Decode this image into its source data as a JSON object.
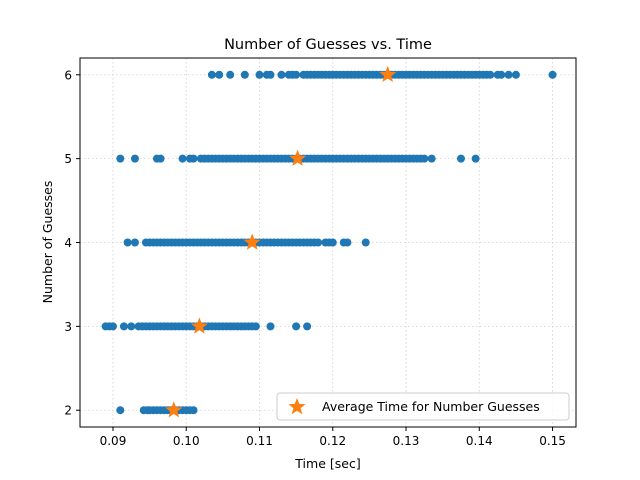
{
  "chart_data": {
    "type": "scatter",
    "title": "Number of Guesses vs. Time",
    "xlabel": "Time [sec]",
    "ylabel": "Number of Guesses",
    "xlim": [
      0.0855,
      0.1532
    ],
    "ylim": [
      1.8,
      6.2
    ],
    "xticks": [
      0.09,
      0.1,
      0.11,
      0.12,
      0.13,
      0.14,
      0.15
    ],
    "xtick_labels": [
      "0.09",
      "0.10",
      "0.11",
      "0.12",
      "0.13",
      "0.14",
      "0.15"
    ],
    "yticks": [
      2,
      3,
      4,
      5,
      6
    ],
    "ytick_labels": [
      "2",
      "3",
      "4",
      "5",
      "6"
    ],
    "grid": true,
    "legend_position": "lower-right",
    "colors": {
      "points": "#1f77b4",
      "average": "#ff7f0e",
      "grid": "#d0d0d0"
    },
    "series": [
      {
        "role": "points",
        "x": [
          0.091,
          0.0942,
          0.0947,
          0.095,
          0.0955,
          0.096,
          0.0965,
          0.097,
          0.0975,
          0.098,
          0.0985,
          0.099,
          0.0995,
          0.1,
          0.1005,
          0.101,
          0.089,
          0.0895,
          0.09,
          0.0915,
          0.0925,
          0.0935,
          0.094,
          0.0945,
          0.095,
          0.0955,
          0.096,
          0.0965,
          0.097,
          0.0975,
          0.098,
          0.0985,
          0.099,
          0.0995,
          0.1,
          0.1005,
          0.101,
          0.1015,
          0.102,
          0.1025,
          0.103,
          0.1035,
          0.104,
          0.1045,
          0.105,
          0.1055,
          0.106,
          0.1065,
          0.107,
          0.1075,
          0.108,
          0.1085,
          0.109,
          0.1095,
          0.1115,
          0.115,
          0.1165,
          0.092,
          0.093,
          0.0945,
          0.095,
          0.0955,
          0.096,
          0.0965,
          0.097,
          0.0975,
          0.098,
          0.0985,
          0.099,
          0.0995,
          0.1,
          0.1005,
          0.101,
          0.1015,
          0.102,
          0.1025,
          0.103,
          0.1035,
          0.104,
          0.1045,
          0.105,
          0.1055,
          0.106,
          0.1065,
          0.107,
          0.1075,
          0.108,
          0.1085,
          0.109,
          0.1095,
          0.11,
          0.1105,
          0.111,
          0.1115,
          0.112,
          0.1125,
          0.113,
          0.1135,
          0.114,
          0.1145,
          0.115,
          0.1155,
          0.116,
          0.1165,
          0.117,
          0.1175,
          0.118,
          0.119,
          0.1195,
          0.12,
          0.1215,
          0.122,
          0.1245,
          0.091,
          0.093,
          0.096,
          0.0965,
          0.0995,
          0.1005,
          0.101,
          0.102,
          0.1025,
          0.103,
          0.1035,
          0.104,
          0.1045,
          0.105,
          0.1055,
          0.106,
          0.1065,
          0.107,
          0.1075,
          0.108,
          0.1085,
          0.109,
          0.1095,
          0.11,
          0.1105,
          0.111,
          0.1115,
          0.112,
          0.1125,
          0.113,
          0.1135,
          0.114,
          0.1145,
          0.115,
          0.1155,
          0.116,
          0.1165,
          0.117,
          0.1175,
          0.118,
          0.1185,
          0.119,
          0.1195,
          0.12,
          0.1205,
          0.121,
          0.1215,
          0.122,
          0.1225,
          0.123,
          0.1235,
          0.124,
          0.1245,
          0.125,
          0.1255,
          0.126,
          0.1265,
          0.127,
          0.1275,
          0.128,
          0.1285,
          0.129,
          0.1295,
          0.13,
          0.1305,
          0.131,
          0.1315,
          0.132,
          0.1325,
          0.1335,
          0.1375,
          0.1395,
          0.1035,
          0.1045,
          0.106,
          0.108,
          0.11,
          0.111,
          0.1115,
          0.113,
          0.114,
          0.1145,
          0.115,
          0.116,
          0.1165,
          0.117,
          0.1175,
          0.118,
          0.1185,
          0.119,
          0.1195,
          0.12,
          0.1205,
          0.121,
          0.1215,
          0.122,
          0.1225,
          0.123,
          0.1235,
          0.124,
          0.1245,
          0.125,
          0.1255,
          0.126,
          0.1265,
          0.127,
          0.1275,
          0.128,
          0.1285,
          0.129,
          0.1295,
          0.13,
          0.1305,
          0.131,
          0.1315,
          0.132,
          0.1325,
          0.133,
          0.1335,
          0.134,
          0.1345,
          0.135,
          0.1355,
          0.136,
          0.1365,
          0.137,
          0.1375,
          0.138,
          0.1385,
          0.139,
          0.1395,
          0.14,
          0.1405,
          0.141,
          0.1415,
          0.1425,
          0.143,
          0.144,
          0.145,
          0.15
        ],
        "y": [
          2,
          2,
          2,
          2,
          2,
          2,
          2,
          2,
          2,
          2,
          2,
          2,
          2,
          2,
          2,
          2,
          3,
          3,
          3,
          3,
          3,
          3,
          3,
          3,
          3,
          3,
          3,
          3,
          3,
          3,
          3,
          3,
          3,
          3,
          3,
          3,
          3,
          3,
          3,
          3,
          3,
          3,
          3,
          3,
          3,
          3,
          3,
          3,
          3,
          3,
          3,
          3,
          3,
          3,
          3,
          3,
          3,
          4,
          4,
          4,
          4,
          4,
          4,
          4,
          4,
          4,
          4,
          4,
          4,
          4,
          4,
          4,
          4,
          4,
          4,
          4,
          4,
          4,
          4,
          4,
          4,
          4,
          4,
          4,
          4,
          4,
          4,
          4,
          4,
          4,
          4,
          4,
          4,
          4,
          4,
          4,
          4,
          4,
          4,
          4,
          4,
          4,
          4,
          4,
          4,
          4,
          4,
          4,
          4,
          4,
          4,
          4,
          4,
          5,
          5,
          5,
          5,
          5,
          5,
          5,
          5,
          5,
          5,
          5,
          5,
          5,
          5,
          5,
          5,
          5,
          5,
          5,
          5,
          5,
          5,
          5,
          5,
          5,
          5,
          5,
          5,
          5,
          5,
          5,
          5,
          5,
          5,
          5,
          5,
          5,
          5,
          5,
          5,
          5,
          5,
          5,
          5,
          5,
          5,
          5,
          5,
          5,
          5,
          5,
          5,
          5,
          5,
          5,
          5,
          5,
          5,
          5,
          5,
          5,
          5,
          5,
          5,
          5,
          5,
          5,
          5,
          5,
          5,
          5,
          5,
          6,
          6,
          6,
          6,
          6,
          6,
          6,
          6,
          6,
          6,
          6,
          6,
          6,
          6,
          6,
          6,
          6,
          6,
          6,
          6,
          6,
          6,
          6,
          6,
          6,
          6,
          6,
          6,
          6,
          6,
          6,
          6,
          6,
          6,
          6,
          6,
          6,
          6,
          6,
          6,
          6,
          6,
          6,
          6,
          6,
          6,
          6,
          6,
          6,
          6,
          6,
          6,
          6,
          6,
          6,
          6,
          6,
          6,
          6,
          6,
          6,
          6,
          6,
          6,
          6,
          6,
          6,
          6
        ]
      },
      {
        "role": "average",
        "name": "Average Time for Number Guesses",
        "marker": "star",
        "x": [
          0.0983,
          0.1018,
          0.109,
          0.1152,
          0.1275
        ],
        "y": [
          2,
          3,
          4,
          5,
          6
        ]
      }
    ]
  }
}
